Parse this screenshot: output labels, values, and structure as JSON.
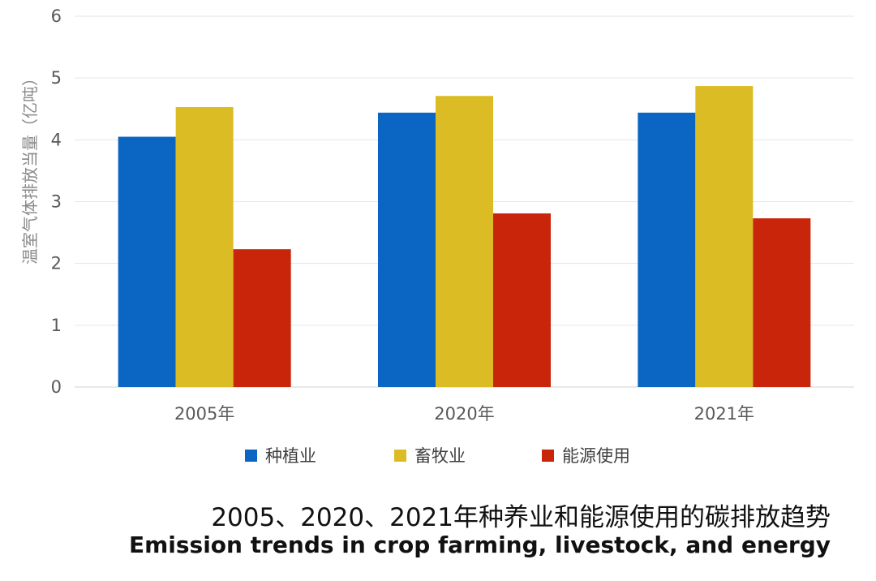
{
  "chart_data": {
    "type": "bar",
    "categories": [
      "2005年",
      "2020年",
      "2021年"
    ],
    "series": [
      {
        "name": "种植业",
        "color": "#0a66c2",
        "values": [
          4.05,
          4.44,
          4.44
        ]
      },
      {
        "name": "畜牧业",
        "color": "#dcbc24",
        "values": [
          4.53,
          4.71,
          4.87
        ]
      },
      {
        "name": "能源使用",
        "color": "#c8250a",
        "values": [
          2.23,
          2.81,
          2.73
        ]
      }
    ],
    "ylabel": "温室气体排放当量（亿吨）",
    "ylim": [
      0,
      6
    ],
    "yticks": [
      "0",
      "1",
      "2",
      "3",
      "4",
      "5",
      "6"
    ],
    "grid": true,
    "legend": "bottom",
    "title": "2005、2020、2021年种养业和能源使用的碳排放趋势",
    "subtitle": "Emission trends in crop farming, livestock, and energy"
  }
}
